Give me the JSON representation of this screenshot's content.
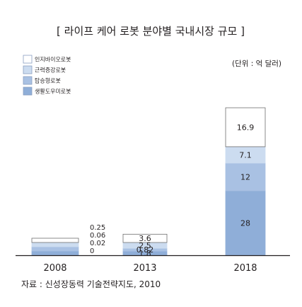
{
  "chart_data": {
    "type": "bar",
    "stacked": true,
    "title": "[ 라이프 케어 로봇 분야별 국내시장 규모 ]",
    "unit": "(단위 : 억 달러)",
    "source": "자료 : 신성장동력 기술전략지도, 2010",
    "categories": [
      "2008",
      "2013",
      "2018"
    ],
    "series": [
      {
        "name": "생활도우미로봇",
        "color": "#8faed8",
        "values": [
          0,
          1.8,
          28
        ],
        "labels": [
          "0",
          "1.8",
          "28"
        ]
      },
      {
        "name": "탑승형로봇",
        "color": "#a9c1e3",
        "values": [
          0.02,
          0.82,
          12
        ],
        "labels": [
          "0.02",
          "0.82",
          "12"
        ]
      },
      {
        "name": "근력증강로봇",
        "color": "#ccdcf0",
        "values": [
          0.06,
          2.5,
          7.1
        ],
        "labels": [
          "0.06",
          "2.5",
          "7.1"
        ]
      },
      {
        "name": "인지바이오로봇",
        "color": "#ffffff",
        "values": [
          0.25,
          3.6,
          16.9
        ],
        "labels": [
          "0.25",
          "3.6",
          "16.9"
        ]
      }
    ],
    "legend_position": "top-left",
    "grid": false
  }
}
